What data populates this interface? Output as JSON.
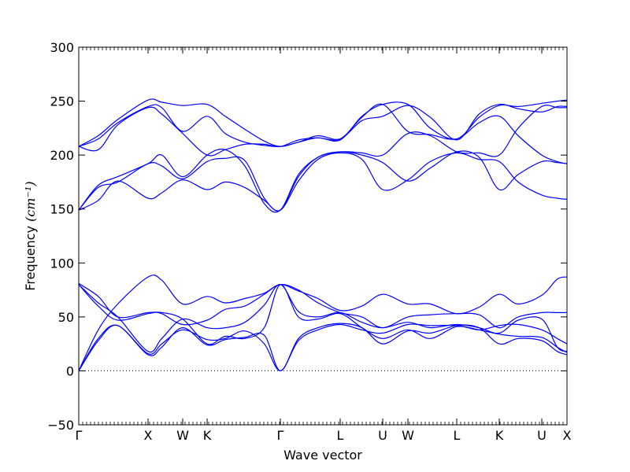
{
  "chart_data": {
    "type": "line",
    "xlabel": "Wave vector",
    "ylabel": "Frequency",
    "ylabel_unit": "(cm⁻¹)",
    "ylim": [
      -50,
      300
    ],
    "yticks": [
      -50,
      0,
      50,
      100,
      150,
      200,
      250,
      300
    ],
    "grid": false,
    "zero_line": {
      "y": 0,
      "style": "dotted"
    },
    "line_color": "#0000ff",
    "xlim": [
      0,
      100
    ],
    "high_symmetry_points": [
      {
        "label": "Γ",
        "x": 0
      },
      {
        "label": "X",
        "x": 14.19
      },
      {
        "label": "W",
        "x": 21.29
      },
      {
        "label": "K",
        "x": 26.29
      },
      {
        "label": "Γ",
        "x": 41.29
      },
      {
        "label": "L",
        "x": 53.55
      },
      {
        "label": "U",
        "x": 62.26
      },
      {
        "label": "W",
        "x": 67.42
      },
      {
        "label": "L",
        "x": 77.42
      },
      {
        "label": "K",
        "x": 86.13
      },
      {
        "label": "U",
        "x": 94.84
      },
      {
        "label": "X",
        "x": 100
      }
    ],
    "series": [
      {
        "x": [
          0,
          4,
          8,
          14.19,
          17,
          21.29,
          26.29,
          30,
          34,
          38,
          41.29,
          45,
          49,
          53.55,
          58,
          62.26,
          67.42,
          72,
          77.42,
          82,
          86.13,
          90,
          94.84,
          98,
          100
        ],
        "y": [
          0,
          30,
          42,
          16,
          25,
          38,
          29,
          30,
          37,
          25,
          0,
          28,
          38,
          43,
          38,
          35,
          43,
          42,
          42,
          38,
          34,
          32,
          31,
          22,
          17
        ]
      },
      {
        "x": [
          0,
          4,
          8,
          14.19,
          17,
          21.29,
          26.29,
          30,
          34,
          38,
          41.29,
          45,
          49,
          53.55,
          58,
          62.26,
          67.42,
          72,
          77.42,
          82,
          86.13,
          90,
          94.84,
          98,
          100
        ],
        "y": [
          0,
          28,
          42,
          15,
          22,
          40,
          24,
          29,
          31,
          33,
          0,
          30,
          40,
          44,
          40,
          25,
          37,
          35,
          42,
          40,
          25,
          30,
          28,
          18,
          15
        ]
      },
      {
        "x": [
          0,
          4,
          8,
          14.19,
          17,
          21.29,
          26.29,
          30,
          34,
          38,
          41.29,
          45,
          49,
          53.55,
          58,
          62.26,
          67.42,
          72,
          77.42,
          82,
          86.13,
          90,
          94.84,
          98,
          100
        ],
        "y": [
          0,
          38,
          62,
          87,
          84,
          62,
          69,
          63,
          67,
          72,
          80,
          74,
          67,
          56,
          60,
          71,
          62,
          62,
          53,
          59,
          71,
          62,
          70,
          85,
          87
        ]
      },
      {
        "x": [
          0,
          4,
          8,
          14.19,
          17,
          21.29,
          26.29,
          30,
          34,
          38,
          41.29,
          45,
          49,
          53.55,
          58,
          62.26,
          67.42,
          72,
          77.42,
          82,
          86.13,
          90,
          94.84,
          98,
          100
        ],
        "y": [
          81,
          69,
          50,
          54,
          53,
          43,
          47,
          57,
          60,
          71,
          80,
          75,
          63,
          54,
          50,
          40,
          50,
          52,
          53,
          52,
          40,
          50,
          54,
          54,
          54
        ]
      },
      {
        "x": [
          0,
          4,
          8,
          14.19,
          17,
          21.29,
          26.29,
          30,
          34,
          38,
          41.29,
          45,
          49,
          53.55,
          58,
          62.26,
          67.42,
          72,
          77.42,
          82,
          86.13,
          90,
          94.84,
          98,
          100
        ],
        "y": [
          80,
          63,
          50,
          18,
          30,
          48,
          40,
          40,
          45,
          61,
          80,
          55,
          50,
          54,
          45,
          40,
          45,
          40,
          43,
          40,
          35,
          47,
          48,
          22,
          18
        ]
      },
      {
        "x": [
          0,
          4,
          8,
          14.19,
          17,
          21.29,
          26.29,
          30,
          34,
          38,
          41.29,
          45,
          49,
          53.55,
          58,
          62.26,
          67.42,
          72,
          77.42,
          82,
          86.13,
          90,
          94.84,
          98,
          100
        ],
        "y": [
          80,
          60,
          47,
          53,
          54,
          48,
          25,
          32,
          30,
          40,
          80,
          50,
          48,
          53,
          40,
          30,
          38,
          30,
          41,
          38,
          42,
          43,
          38,
          30,
          25
        ]
      },
      {
        "x": [
          0,
          4,
          8,
          14.19,
          17,
          21.29,
          26.29,
          30,
          34,
          38,
          41.29,
          45,
          49,
          53.55,
          58,
          62.26,
          67.42,
          72,
          77.42,
          82,
          86.13,
          90,
          94.84,
          98,
          100
        ],
        "y": [
          149,
          170,
          175,
          192,
          190,
          178,
          194,
          197,
          195,
          160,
          149,
          176,
          196,
          202,
          196,
          168,
          177,
          194,
          202,
          196,
          194,
          175,
          163,
          160,
          159
        ]
      },
      {
        "x": [
          0,
          4,
          8,
          14.19,
          17,
          21.29,
          26.29,
          30,
          34,
          38,
          41.29,
          45,
          49,
          53.55,
          58,
          62.26,
          67.42,
          72,
          77.42,
          82,
          86.13,
          90,
          94.84,
          98,
          100
        ],
        "y": [
          149,
          158,
          176,
          160,
          165,
          177,
          168,
          175,
          170,
          158,
          149,
          180,
          198,
          203,
          200,
          193,
          176,
          188,
          203,
          198,
          168,
          182,
          194,
          193,
          192
        ]
      },
      {
        "x": [
          0,
          4,
          8,
          14.19,
          17,
          21.29,
          26.29,
          30,
          34,
          38,
          41.29,
          45,
          49,
          53.55,
          58,
          62.26,
          67.42,
          72,
          77.42,
          82,
          86.13,
          90,
          94.84,
          98,
          100
        ],
        "y": [
          149,
          172,
          180,
          192,
          200,
          180,
          200,
          205,
          190,
          155,
          149,
          182,
          198,
          203,
          202,
          200,
          220,
          218,
          203,
          202,
          200,
          225,
          245,
          244,
          244
        ]
      },
      {
        "x": [
          0,
          4,
          8,
          14.19,
          17,
          21.29,
          26.29,
          30,
          34,
          38,
          41.29,
          45,
          49,
          53.55,
          58,
          62.26,
          67.42,
          72,
          77.42,
          82,
          86.13,
          90,
          94.84,
          98,
          100
        ],
        "y": [
          208,
          205,
          228,
          244,
          238,
          220,
          200,
          205,
          210,
          210,
          208,
          214,
          216,
          215,
          235,
          247,
          222,
          219,
          215,
          230,
          236,
          218,
          200,
          194,
          192
        ]
      },
      {
        "x": [
          0,
          4,
          8,
          14.19,
          17,
          21.29,
          26.29,
          30,
          34,
          38,
          41.29,
          45,
          49,
          53.55,
          58,
          62.26,
          67.42,
          72,
          77.42,
          82,
          86.13,
          90,
          94.84,
          98,
          100
        ],
        "y": [
          208,
          215,
          230,
          245,
          244,
          222,
          236,
          220,
          212,
          209,
          208,
          212,
          218,
          215,
          232,
          236,
          246,
          235,
          214,
          238,
          247,
          243,
          240,
          245,
          245
        ]
      },
      {
        "x": [
          0,
          4,
          8,
          14.19,
          17,
          21.29,
          26.29,
          30,
          34,
          38,
          41.29,
          45,
          49,
          53.55,
          58,
          62.26,
          67.42,
          72,
          77.42,
          82,
          86.13,
          90,
          94.84,
          98,
          100
        ],
        "y": [
          208,
          218,
          233,
          251,
          249,
          246,
          247,
          236,
          224,
          213,
          208,
          212,
          216,
          214,
          236,
          247,
          247,
          225,
          215,
          235,
          246,
          245,
          248,
          250,
          251
        ]
      }
    ]
  }
}
